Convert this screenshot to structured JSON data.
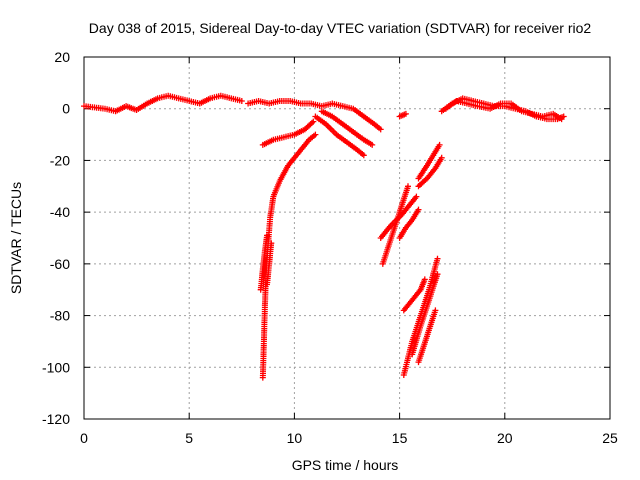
{
  "chart_data": {
    "type": "scatter",
    "title": "Day 038 of 2015, Sidereal Day-to-day VTEC variation (SDTVAR) for receiver rio2",
    "xlabel": "GPS time / hours",
    "ylabel": "SDTVAR / TECUs",
    "xlim": [
      0,
      25
    ],
    "ylim": [
      -120,
      20
    ],
    "xticks": [
      0,
      5,
      10,
      15,
      20,
      25
    ],
    "yticks": [
      20,
      0,
      -20,
      -40,
      -60,
      -80,
      -100,
      -120
    ],
    "grid": true,
    "marker": "plus",
    "series": [
      {
        "color": "#ff0000",
        "segments": [
          [
            [
              0,
              1
            ],
            [
              0.5,
              0.5
            ],
            [
              1,
              0
            ],
            [
              1.5,
              -1
            ],
            [
              2,
              1
            ],
            [
              2.5,
              -0.5
            ],
            [
              3,
              2
            ],
            [
              3.5,
              4
            ],
            [
              4,
              5
            ],
            [
              4.5,
              4
            ],
            [
              5,
              3
            ],
            [
              5.5,
              2
            ],
            [
              6,
              4
            ],
            [
              6.5,
              5
            ],
            [
              7,
              4
            ],
            [
              7.5,
              3
            ]
          ],
          [
            [
              7.8,
              2
            ],
            [
              8.3,
              3
            ],
            [
              8.8,
              2
            ],
            [
              9.3,
              3
            ],
            [
              9.8,
              3
            ],
            [
              10.3,
              2
            ],
            [
              10.8,
              2
            ],
            [
              11.3,
              1
            ],
            [
              11.8,
              2
            ],
            [
              12.3,
              1
            ],
            [
              12.8,
              0
            ],
            [
              13.3,
              -3
            ],
            [
              13.8,
              -6
            ],
            [
              14.1,
              -8
            ]
          ],
          [
            [
              11.3,
              -1
            ],
            [
              11.8,
              -3
            ],
            [
              12.3,
              -6
            ],
            [
              12.8,
              -9
            ],
            [
              13.3,
              -12
            ],
            [
              13.7,
              -14
            ]
          ],
          [
            [
              11,
              -3
            ],
            [
              11.5,
              -6
            ],
            [
              12,
              -10
            ],
            [
              12.5,
              -13
            ],
            [
              13,
              -16
            ],
            [
              13.3,
              -18
            ]
          ],
          [
            [
              8.5,
              -14
            ],
            [
              9,
              -12
            ],
            [
              9.5,
              -11
            ],
            [
              10,
              -10
            ],
            [
              10.5,
              -8
            ],
            [
              10.9,
              -5
            ]
          ],
          [
            [
              8.5,
              -104
            ],
            [
              8.55,
              -90
            ],
            [
              8.6,
              -76
            ],
            [
              8.65,
              -64
            ],
            [
              8.75,
              -52
            ],
            [
              8.85,
              -42
            ],
            [
              9,
              -34
            ],
            [
              9.3,
              -28
            ],
            [
              9.7,
              -22
            ],
            [
              10.2,
              -17
            ],
            [
              10.7,
              -12
            ],
            [
              11,
              -10
            ]
          ],
          [
            [
              8.4,
              -70
            ],
            [
              8.5,
              -62
            ],
            [
              8.6,
              -55
            ],
            [
              8.7,
              -49
            ]
          ],
          [
            [
              8.7,
              -68
            ],
            [
              8.8,
              -60
            ],
            [
              8.9,
              -52
            ]
          ],
          [
            [
              14.2,
              -60
            ],
            [
              14.6,
              -50
            ],
            [
              15,
              -40
            ],
            [
              15.4,
              -30
            ]
          ],
          [
            [
              14.1,
              -50
            ],
            [
              14.6,
              -45
            ],
            [
              15.1,
              -41
            ],
            [
              15.5,
              -37
            ],
            [
              15.8,
              -34
            ]
          ],
          [
            [
              15,
              -50
            ],
            [
              15.3,
              -46
            ],
            [
              15.6,
              -43
            ],
            [
              15.9,
              -39
            ]
          ],
          [
            [
              15,
              -3
            ],
            [
              15.3,
              -2
            ]
          ],
          [
            [
              15.9,
              -27
            ],
            [
              16.3,
              -22
            ],
            [
              16.6,
              -18
            ],
            [
              16.9,
              -14
            ]
          ],
          [
            [
              15.9,
              -30
            ],
            [
              16.3,
              -27
            ],
            [
              16.7,
              -23
            ],
            [
              17,
              -19
            ]
          ],
          [
            [
              15.2,
              -103
            ],
            [
              15.6,
              -90
            ],
            [
              16,
              -80
            ],
            [
              16.4,
              -70
            ],
            [
              16.8,
              -58
            ]
          ],
          [
            [
              15.6,
              -95
            ],
            [
              16,
              -84
            ],
            [
              16.4,
              -74
            ],
            [
              16.8,
              -64
            ]
          ],
          [
            [
              15.9,
              -98
            ],
            [
              16.3,
              -88
            ],
            [
              16.7,
              -78
            ]
          ],
          [
            [
              15.2,
              -78
            ],
            [
              15.6,
              -74
            ],
            [
              16,
              -70
            ],
            [
              16.2,
              -66
            ]
          ],
          [
            [
              17,
              -1
            ],
            [
              17.5,
              2
            ],
            [
              18,
              4
            ],
            [
              18.5,
              3
            ],
            [
              19,
              2
            ],
            [
              19.5,
              1
            ],
            [
              20,
              1
            ],
            [
              20.5,
              0
            ],
            [
              21,
              -1
            ],
            [
              21.5,
              -3
            ],
            [
              22,
              -4
            ],
            [
              22.5,
              -4
            ],
            [
              22.8,
              -3
            ]
          ],
          [
            [
              17.2,
              0
            ],
            [
              17.7,
              3
            ],
            [
              18.2,
              2
            ],
            [
              18.7,
              1
            ],
            [
              19.3,
              0
            ],
            [
              19.8,
              2
            ],
            [
              20.3,
              2
            ],
            [
              20.8,
              -1
            ],
            [
              21.3,
              -2
            ],
            [
              21.8,
              -3
            ],
            [
              22.3,
              -2
            ],
            [
              22.7,
              -4
            ]
          ]
        ]
      }
    ]
  }
}
